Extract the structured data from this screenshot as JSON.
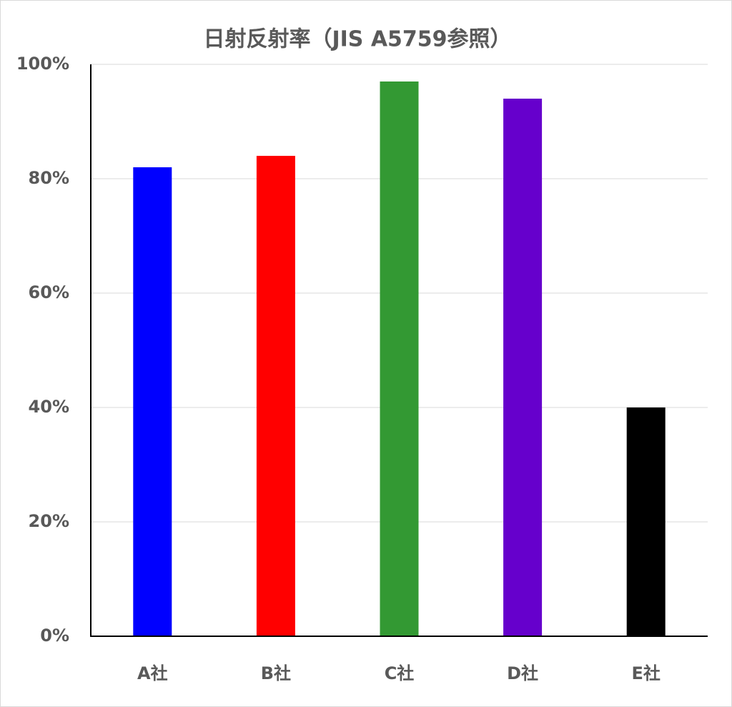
{
  "chart_data": {
    "type": "bar",
    "title": "日射反射率（JIS A5759参照）",
    "categories": [
      "A社",
      "B社",
      "C社",
      "D社",
      "E社"
    ],
    "values": [
      82,
      84,
      97,
      94,
      40
    ],
    "colors": [
      "#0000ff",
      "#ff0000",
      "#339933",
      "#6600cc",
      "#000000"
    ],
    "ylim": [
      0,
      100
    ],
    "yticks": [
      {
        "value": 0,
        "label": "0%"
      },
      {
        "value": 20,
        "label": "20%"
      },
      {
        "value": 40,
        "label": "40%"
      },
      {
        "value": 60,
        "label": "60%"
      },
      {
        "value": 80,
        "label": "80%"
      },
      {
        "value": 100,
        "label": "100%"
      }
    ],
    "grid": true
  }
}
